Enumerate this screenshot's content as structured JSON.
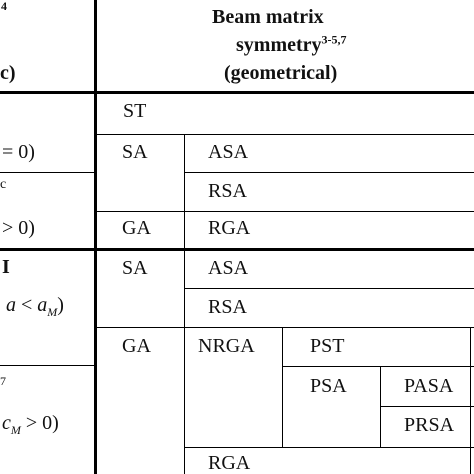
{
  "left_column": {
    "header_sup": "4",
    "header_tail": "c)",
    "cell_1": "= 0)",
    "cell_2_top": "c",
    "cell_2_bottom": "> 0)",
    "cell_3_top": "I",
    "cell_3_bottom_a": "a",
    "cell_3_bottom_op": " < ",
    "cell_3_bottom_b": "a",
    "cell_3_bottom_sub": "M",
    "cell_3_bottom_end": ")",
    "cell_4_top": "7",
    "cell_4_bottom_a": "c",
    "cell_4_bottom_sub": "M",
    "cell_4_bottom_end": " > 0)"
  },
  "header": {
    "line1": "Beam   matrix",
    "line2": "symmetry",
    "line2_sup": "3-5,7",
    "line3": "(geometrical)"
  },
  "cells": {
    "st": "ST",
    "sa1": "SA",
    "asa1": "ASA",
    "rsa1": "RSA",
    "ga1": "GA",
    "rga1": "RGA",
    "sa2": "SA",
    "asa2": "ASA",
    "rsa2": "RSA",
    "ga2": "GA",
    "nrga": "NRGA",
    "pst": "PST",
    "psa": "PSA",
    "pasa": "PASA",
    "prsa": "PRSA",
    "rga2": "RGA"
  }
}
